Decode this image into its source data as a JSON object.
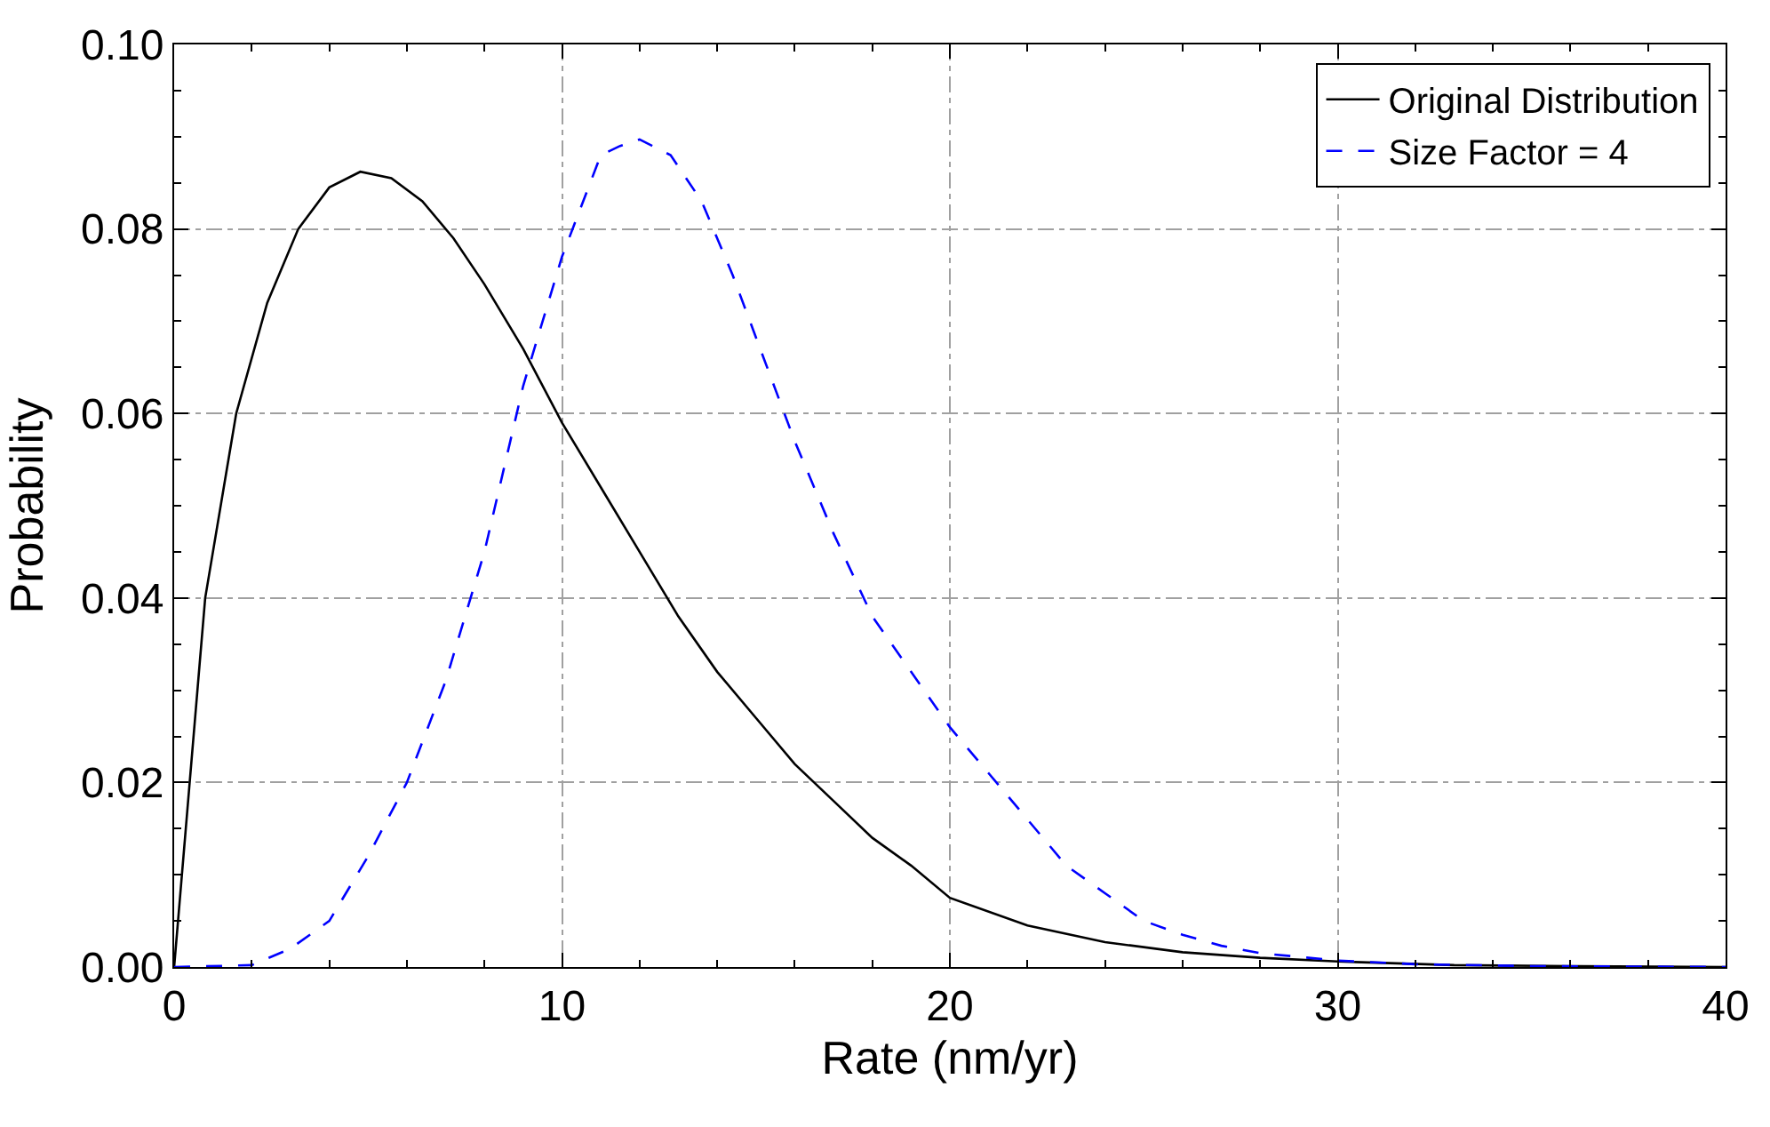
{
  "chart_data": {
    "type": "line",
    "xlabel": "Rate (nm/yr)",
    "ylabel": "Probability",
    "xlim": [
      0,
      40
    ],
    "xticks": [
      0,
      10,
      20,
      30,
      40
    ],
    "ylim": [
      0,
      0.1
    ],
    "yticks": [
      {
        "value": 0,
        "label": "0.00"
      },
      {
        "value": 0.02,
        "label": "0.02"
      },
      {
        "value": 0.04,
        "label": "0.04"
      },
      {
        "value": 0.06,
        "label": "0.06"
      },
      {
        "value": 0.08,
        "label": "0.08"
      },
      {
        "value": 0.1,
        "label": "0.10"
      }
    ],
    "grid": true,
    "legend": "top right",
    "marker": "none",
    "series": [
      {
        "name": "Original Distribution",
        "color": "#000000",
        "line_style": "solid",
        "x": [
          0,
          0.8,
          1.6,
          2.4,
          3.2,
          4,
          4.8,
          5.6,
          6.4,
          7.2,
          8,
          9,
          10,
          11,
          12,
          13,
          14,
          15,
          16,
          17,
          18,
          19,
          20,
          22,
          24,
          26,
          28,
          30,
          33,
          36,
          40
        ],
        "values": [
          0,
          0.04,
          0.06,
          0.072,
          0.08,
          0.0845,
          0.0862,
          0.0855,
          0.083,
          0.079,
          0.074,
          0.067,
          0.059,
          0.052,
          0.045,
          0.038,
          0.032,
          0.027,
          0.022,
          0.018,
          0.014,
          0.011,
          0.0075,
          0.0045,
          0.0027,
          0.0016,
          0.001,
          0.0006,
          0.0002,
          0.0001,
          0
        ]
      },
      {
        "name": "Size Factor = 4",
        "color": "#0000ff",
        "line_style": "dashed",
        "x": [
          0,
          2,
          3,
          4,
          5,
          6,
          7,
          8,
          9,
          10,
          11,
          11.5,
          12,
          12.8,
          13.6,
          14.4,
          15.2,
          16,
          17,
          18,
          19,
          20,
          21,
          22,
          23,
          24,
          25,
          26,
          27,
          28,
          30,
          32,
          35,
          40
        ],
        "values": [
          0,
          0.0002,
          0.002,
          0.005,
          0.012,
          0.02,
          0.031,
          0.045,
          0.063,
          0.077,
          0.088,
          0.089,
          0.0897,
          0.088,
          0.083,
          0.075,
          0.066,
          0.057,
          0.047,
          0.038,
          0.032,
          0.026,
          0.021,
          0.016,
          0.011,
          0.008,
          0.005,
          0.0035,
          0.0023,
          0.0015,
          0.0007,
          0.0003,
          0.0001,
          0
        ]
      }
    ]
  }
}
